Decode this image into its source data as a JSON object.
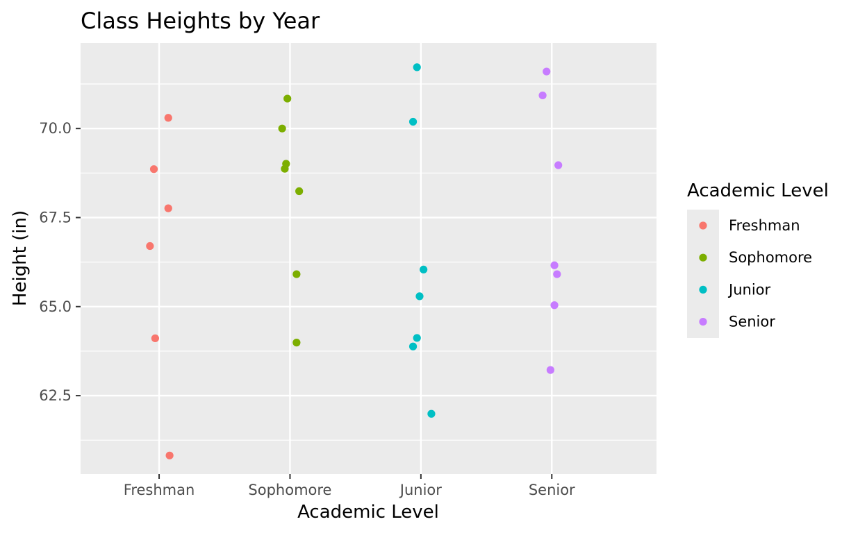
{
  "chart_data": {
    "type": "scatter",
    "title": "Class Heights by Year",
    "xlabel": "Academic Level",
    "ylabel": "Height (in)",
    "categories": [
      "Freshman",
      "Sophomore",
      "Junior",
      "Senior"
    ],
    "ylim": [
      60.3,
      72.4
    ],
    "yticks": [
      62.5,
      65.0,
      67.5,
      70.0
    ],
    "ytick_labels": [
      "62.5",
      "65.0",
      "67.5",
      "70.0"
    ],
    "grid": true,
    "legend": {
      "title": "Academic Level",
      "position": "right",
      "entries": [
        "Freshman",
        "Sophomore",
        "Junior",
        "Senior"
      ]
    },
    "colors": {
      "Freshman": "#F8766D",
      "Sophomore": "#7CAE00",
      "Junior": "#00BFC4",
      "Senior": "#C77CFF",
      "panel": "#EBEBEB",
      "grid": "#FFFFFF"
    },
    "series": [
      {
        "name": "Freshman",
        "points": [
          {
            "x": "Freshman",
            "jitter": 0.07,
            "y": 70.3
          },
          {
            "x": "Freshman",
            "jitter": -0.04,
            "y": 68.86
          },
          {
            "x": "Freshman",
            "jitter": 0.07,
            "y": 67.76
          },
          {
            "x": "Freshman",
            "jitter": -0.07,
            "y": 66.7
          },
          {
            "x": "Freshman",
            "jitter": -0.03,
            "y": 64.11
          },
          {
            "x": "Freshman",
            "jitter": 0.08,
            "y": 60.82
          }
        ]
      },
      {
        "name": "Sophomore",
        "points": [
          {
            "x": "Sophomore",
            "jitter": -0.02,
            "y": 70.84
          },
          {
            "x": "Sophomore",
            "jitter": -0.06,
            "y": 70.0
          },
          {
            "x": "Sophomore",
            "jitter": -0.03,
            "y": 69.01
          },
          {
            "x": "Sophomore",
            "jitter": -0.04,
            "y": 68.87
          },
          {
            "x": "Sophomore",
            "jitter": 0.07,
            "y": 68.24
          },
          {
            "x": "Sophomore",
            "jitter": 0.05,
            "y": 65.91
          },
          {
            "x": "Sophomore",
            "jitter": 0.05,
            "y": 63.99
          }
        ]
      },
      {
        "name": "Junior",
        "points": [
          {
            "x": "Junior",
            "jitter": -0.03,
            "y": 71.72
          },
          {
            "x": "Junior",
            "jitter": -0.06,
            "y": 70.19
          },
          {
            "x": "Junior",
            "jitter": 0.02,
            "y": 66.04
          },
          {
            "x": "Junior",
            "jitter": -0.01,
            "y": 65.29
          },
          {
            "x": "Junior",
            "jitter": -0.03,
            "y": 64.12
          },
          {
            "x": "Junior",
            "jitter": -0.06,
            "y": 63.88
          },
          {
            "x": "Junior",
            "jitter": 0.08,
            "y": 61.99
          }
        ]
      },
      {
        "name": "Senior",
        "points": [
          {
            "x": "Senior",
            "jitter": -0.04,
            "y": 71.6
          },
          {
            "x": "Senior",
            "jitter": -0.07,
            "y": 70.93
          },
          {
            "x": "Senior",
            "jitter": 0.05,
            "y": 68.97
          },
          {
            "x": "Senior",
            "jitter": 0.02,
            "y": 66.16
          },
          {
            "x": "Senior",
            "jitter": 0.04,
            "y": 65.91
          },
          {
            "x": "Senior",
            "jitter": 0.02,
            "y": 65.04
          },
          {
            "x": "Senior",
            "jitter": -0.01,
            "y": 63.22
          }
        ]
      }
    ]
  }
}
